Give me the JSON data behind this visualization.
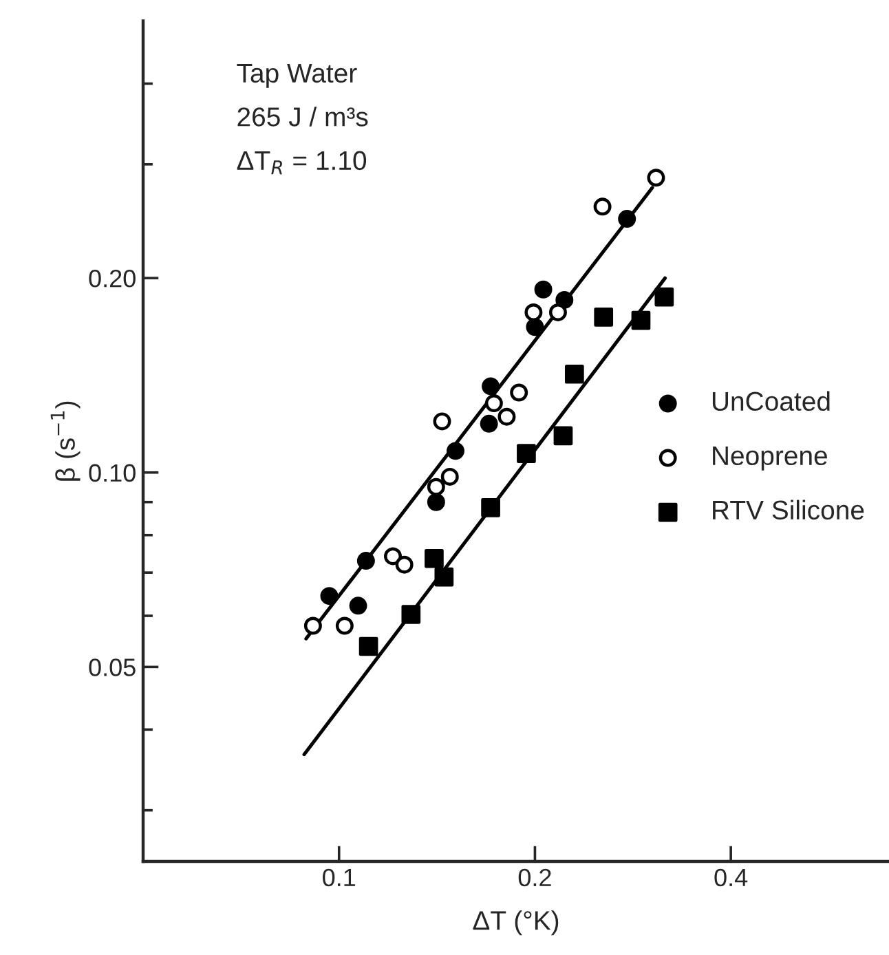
{
  "chart_data": {
    "type": "scatter",
    "xlabel": "ΔT (°K)",
    "ylabel": "β (s$^{−1}$)",
    "annotations": [
      "Tap Water",
      "265 J / m³s",
      "ΔT$_{R}$ = 1.10"
    ],
    "log": "xy",
    "xlim": [
      0.05,
      0.7
    ],
    "xticks": [
      0.1,
      0.2,
      0.4
    ],
    "ylim": [
      0.025,
      0.5
    ],
    "yticks": [
      {
        "value": 0.03,
        "label": null
      },
      {
        "value": 0.04,
        "label": null
      },
      0.05,
      {
        "value": 0.06,
        "label": null
      },
      {
        "value": 0.07,
        "label": null
      },
      {
        "value": 0.08,
        "label": null
      },
      {
        "value": 0.09,
        "label": null
      },
      {
        "value": 0.1,
        "label": "0.10"
      },
      {
        "value": 0.2,
        "label": "0.20"
      },
      {
        "value": 0.3,
        "label": null
      },
      {
        "value": 0.4,
        "label": null
      }
    ],
    "grid": false,
    "legend": "right",
    "series": [
      {
        "name": "UnCoated",
        "color": "#000000",
        "marker": "circle",
        "x": [
          0.0966,
          0.107,
          0.11,
          0.141,
          0.151,
          0.17,
          0.171,
          0.2,
          0.206,
          0.222,
          0.277
        ],
        "values": [
          0.0644,
          0.0622,
          0.073,
          0.09,
          0.108,
          0.119,
          0.136,
          0.168,
          0.192,
          0.185,
          0.247
        ]
      },
      {
        "name": "Neoprene",
        "color": "#ffffff",
        "marker": "circle",
        "x": [
          0.0912,
          0.102,
          0.121,
          0.126,
          0.141,
          0.148,
          0.144,
          0.173,
          0.181,
          0.189,
          0.199,
          0.217,
          0.254,
          0.307
        ],
        "values": [
          0.0579,
          0.0579,
          0.0742,
          0.072,
          0.095,
          0.0985,
          0.12,
          0.128,
          0.122,
          0.133,
          0.177,
          0.177,
          0.258,
          0.286
        ]
      },
      {
        "name": "RTV Silicone",
        "color": "#000000",
        "marker": "square",
        "x": [
          0.111,
          0.129,
          0.14,
          0.145,
          0.171,
          0.194,
          0.221,
          0.23,
          0.255,
          0.291,
          0.316
        ],
        "values": [
          0.0538,
          0.0603,
          0.0736,
          0.0689,
          0.0882,
          0.107,
          0.114,
          0.142,
          0.174,
          0.172,
          0.187
        ]
      },
      {
        "type": "line",
        "color": "#000000",
        "marker": "none",
        "line_style": "solid",
        "x": [
          0.089,
          0.303
        ],
        "values": [
          0.0553,
          0.276
        ]
      },
      {
        "type": "line",
        "color": "#000000",
        "marker": "none",
        "line_style": "solid",
        "x": [
          0.0884,
          0.317
        ],
        "values": [
          0.0366,
          0.2
        ]
      }
    ]
  }
}
